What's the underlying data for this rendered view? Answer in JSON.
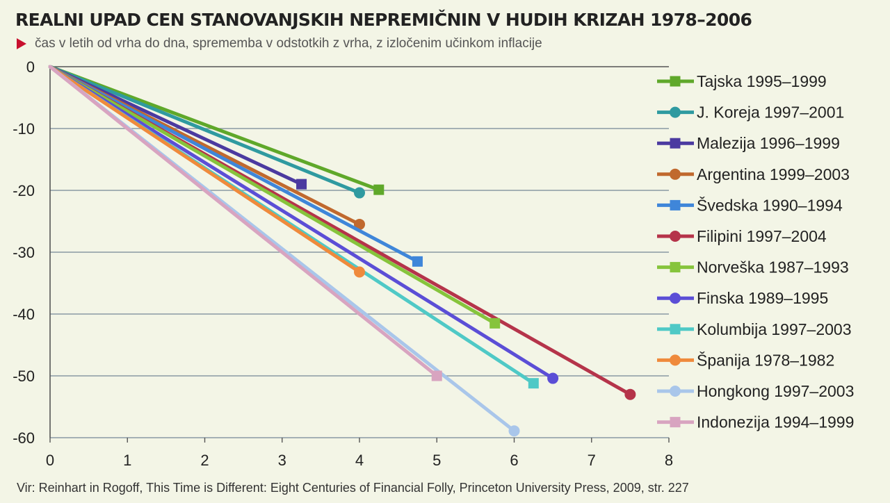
{
  "chart_data": {
    "type": "line",
    "title": "REALNI UPAD CEN STANOVANJSKIH NEPREMIČNIN V HUDIH KRIZAH 1978–2006",
    "subtitle": "čas v  letih od vrha do dna, sprememba v odstotkih z vrha, z izločenim učinkom inflacije",
    "source": "Vir: Reinhart in Rogoff, This Time is Different: Eight Centuries of Financial Folly, Princeton University Press, 2009, str. 227",
    "xlim": [
      0,
      8
    ],
    "ylim": [
      -60,
      0
    ],
    "x_ticks": [
      0,
      1,
      2,
      3,
      4,
      5,
      6,
      7,
      8
    ],
    "y_ticks": [
      0,
      -10,
      -20,
      -30,
      -40,
      -50,
      -60
    ],
    "grid": "horizontal",
    "legend_position": "right",
    "series": [
      {
        "name": "Tajska 1995–1999",
        "color": "#5fa82a",
        "marker": "square",
        "points": [
          [
            0,
            0
          ],
          [
            4.25,
            -19.9
          ]
        ]
      },
      {
        "name": "J. Koreja 1997–2001",
        "color": "#2f9aa0",
        "marker": "circle",
        "points": [
          [
            0,
            0
          ],
          [
            4,
            -20.4
          ]
        ]
      },
      {
        "name": "Malezija 1996–1999",
        "color": "#4b3aa0",
        "marker": "square",
        "points": [
          [
            0,
            0
          ],
          [
            3.25,
            -19
          ]
        ]
      },
      {
        "name": "Argentina 1999–2003",
        "color": "#c0692e",
        "marker": "circle",
        "points": [
          [
            0,
            0
          ],
          [
            4,
            -25.5
          ]
        ]
      },
      {
        "name": "Švedska 1990–1994",
        "color": "#3f86d9",
        "marker": "square",
        "points": [
          [
            0,
            0
          ],
          [
            4.75,
            -31.5
          ]
        ]
      },
      {
        "name": "Filipini 1997–2004",
        "color": "#b5344a",
        "marker": "circle",
        "points": [
          [
            0,
            0
          ],
          [
            7.5,
            -53
          ]
        ]
      },
      {
        "name": "Norveška 1987–1993",
        "color": "#86c43c",
        "marker": "square",
        "points": [
          [
            0,
            0
          ],
          [
            5.75,
            -41.5
          ]
        ]
      },
      {
        "name": "Finska 1989–1995",
        "color": "#5b4ed6",
        "marker": "circle",
        "points": [
          [
            0,
            0
          ],
          [
            6.5,
            -50.4
          ]
        ]
      },
      {
        "name": "Kolumbija 1997–2003",
        "color": "#4fc9c6",
        "marker": "square",
        "points": [
          [
            0,
            0
          ],
          [
            6.25,
            -51.2
          ]
        ]
      },
      {
        "name": "Španija 1978–1982",
        "color": "#ef8a3c",
        "marker": "circle",
        "points": [
          [
            0,
            0
          ],
          [
            4,
            -33.2
          ]
        ]
      },
      {
        "name": "Hongkong 1997–2003",
        "color": "#a9c6ea",
        "marker": "circle",
        "points": [
          [
            0,
            0
          ],
          [
            6,
            -58.9
          ]
        ]
      },
      {
        "name": "Indonezija 1994–1999",
        "color": "#d8a4c0",
        "marker": "square",
        "points": [
          [
            0,
            0
          ],
          [
            5,
            -50
          ]
        ]
      }
    ]
  }
}
